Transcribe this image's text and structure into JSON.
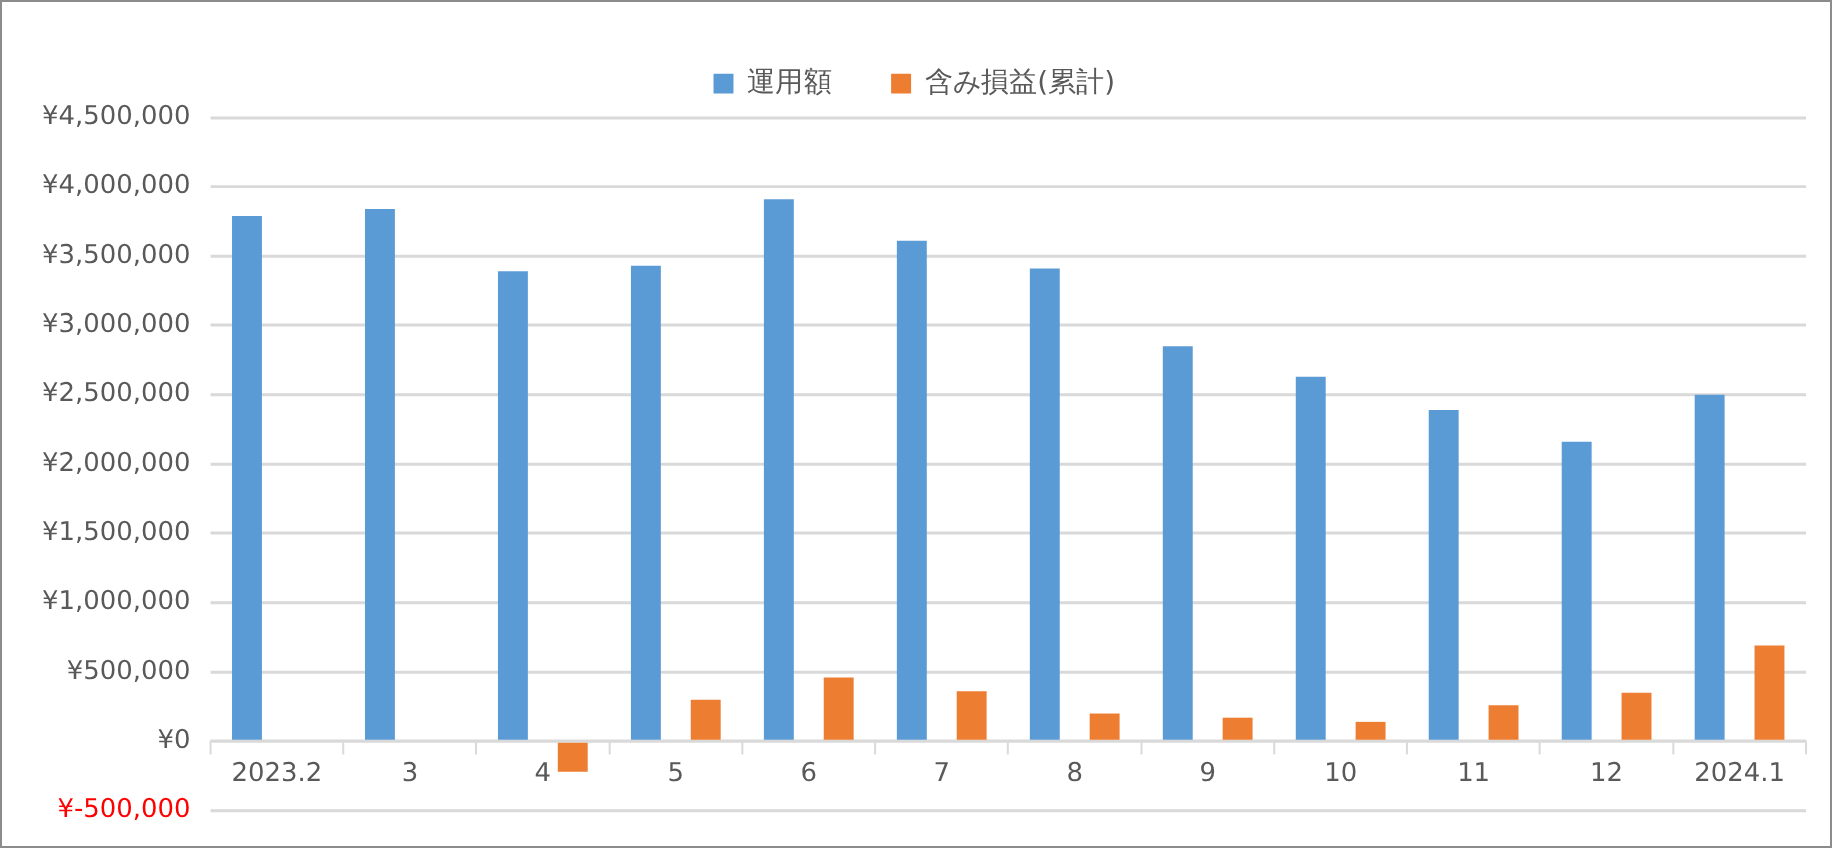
{
  "chart_data": {
    "type": "bar",
    "categories": [
      "2023.2",
      "3",
      "4",
      "5",
      "6",
      "7",
      "8",
      "9",
      "10",
      "11",
      "12",
      "2024.1"
    ],
    "series": [
      {
        "name": "運用額",
        "color": "#5b9bd5",
        "values": [
          3790000,
          3840000,
          3390000,
          3430000,
          3910000,
          3610000,
          3410000,
          2850000,
          2630000,
          2390000,
          2160000,
          2500000
        ]
      },
      {
        "name": "含み損益(累計)",
        "color": "#ed7d31",
        "values": [
          null,
          null,
          -220000,
          300000,
          460000,
          360000,
          200000,
          170000,
          140000,
          260000,
          350000,
          690000
        ]
      }
    ],
    "ylim": [
      -500000,
      4500000
    ],
    "yticks": [
      {
        "value": -500000,
        "label": "¥-500,000"
      },
      {
        "value": 0,
        "label": "¥0"
      },
      {
        "value": 500000,
        "label": "¥500,000"
      },
      {
        "value": 1000000,
        "label": "¥1,000,000"
      },
      {
        "value": 1500000,
        "label": "¥1,500,000"
      },
      {
        "value": 2000000,
        "label": "¥2,000,000"
      },
      {
        "value": 2500000,
        "label": "¥2,500,000"
      },
      {
        "value": 3000000,
        "label": "¥3,000,000"
      },
      {
        "value": 3500000,
        "label": "¥3,500,000"
      },
      {
        "value": 4000000,
        "label": "¥4,000,000"
      },
      {
        "value": 4500000,
        "label": "¥4,500,000"
      }
    ],
    "grid": "y",
    "legend": "top"
  }
}
